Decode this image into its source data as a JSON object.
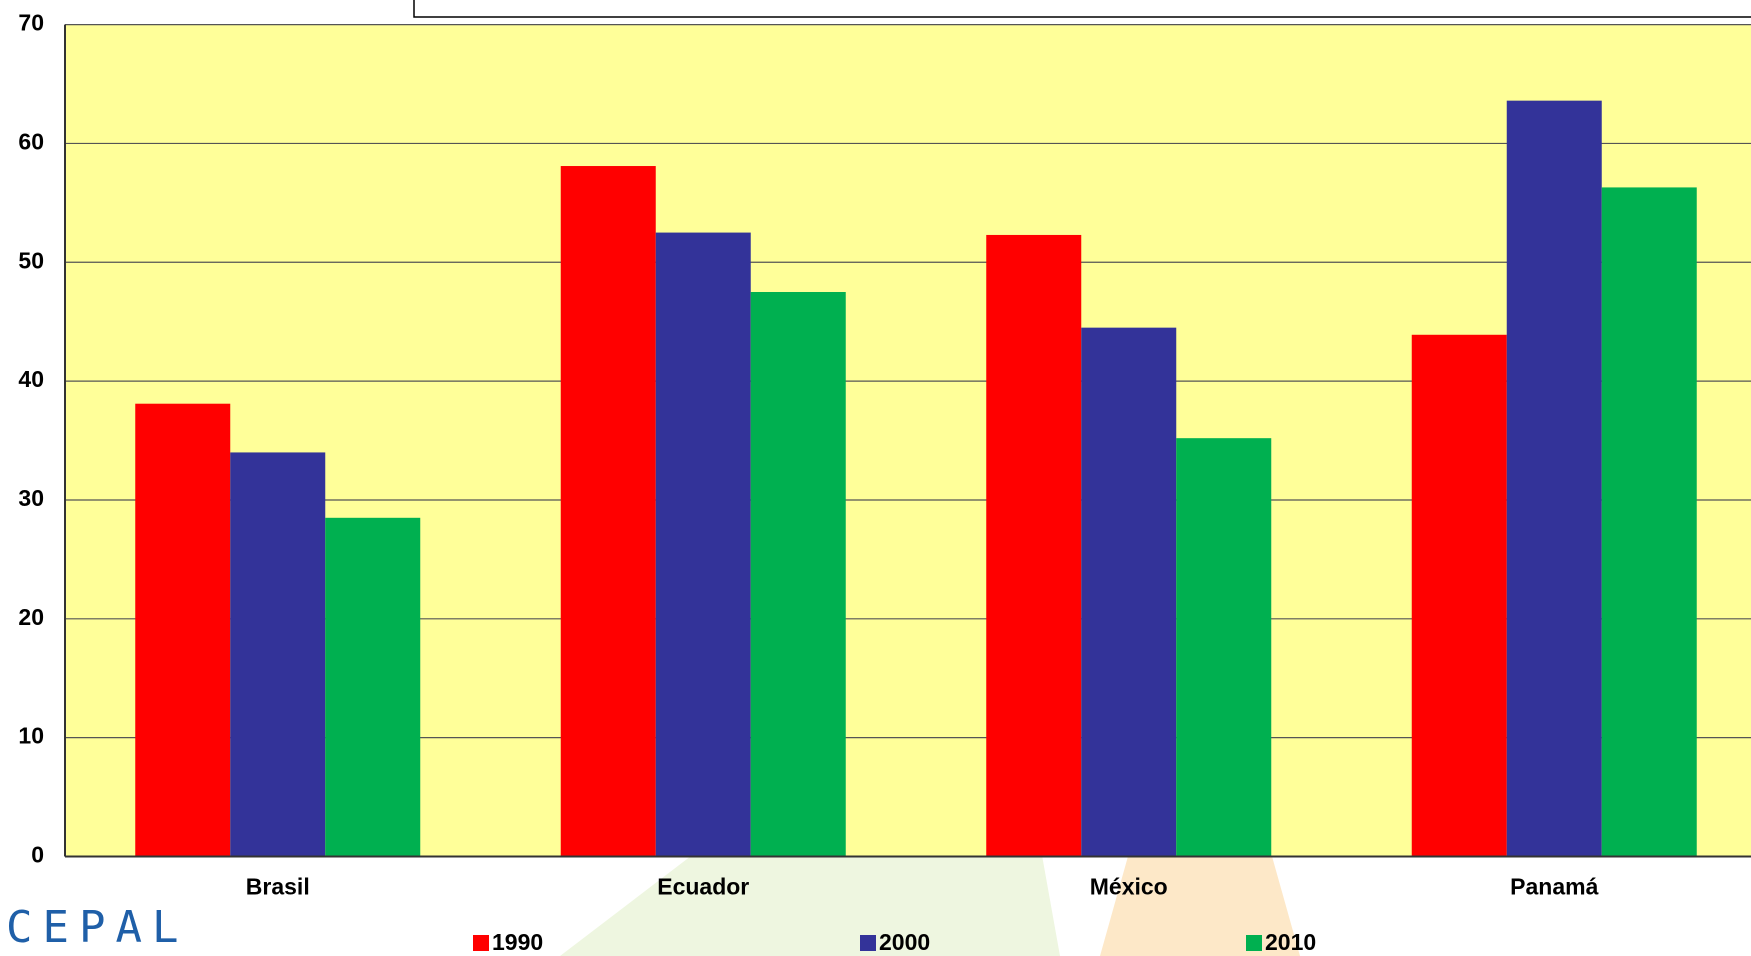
{
  "chart_data": {
    "type": "bar",
    "categories": [
      "Brasil",
      "Ecuador",
      "México",
      "Panamá"
    ],
    "series": [
      {
        "name": "1990",
        "color": "#ff0000",
        "values": [
          38.1,
          58.1,
          52.3,
          43.9
        ]
      },
      {
        "name": "2000",
        "color": "#333399",
        "values": [
          34.0,
          52.5,
          44.5,
          63.6
        ]
      },
      {
        "name": "2010",
        "color": "#00b050",
        "values": [
          28.5,
          47.5,
          35.2,
          56.3
        ]
      }
    ],
    "ylim": [
      0,
      70
    ],
    "yticks": [
      0,
      10,
      20,
      30,
      40,
      50,
      60,
      70
    ],
    "grid": true,
    "legend": "bottom"
  },
  "logo": "CEPAL"
}
